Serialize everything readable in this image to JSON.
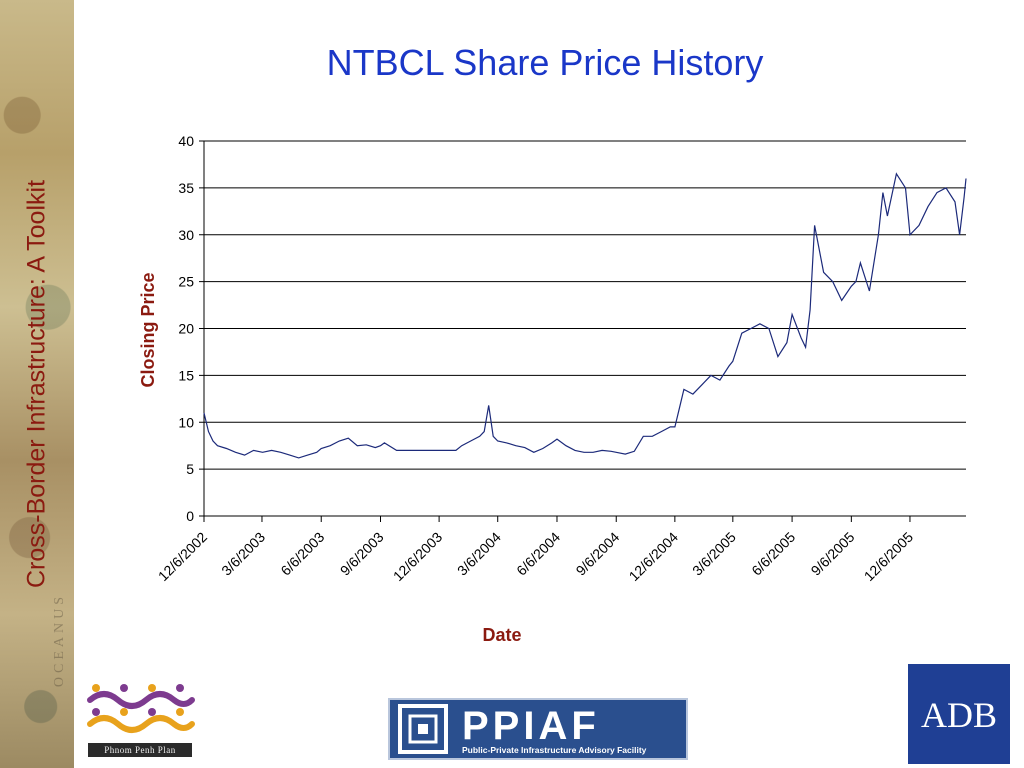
{
  "sidebar": {
    "text": "Cross-Border Infrastructure: A Toolkit",
    "faint_text": "OCEANUS"
  },
  "logos": {
    "ppp": {
      "caption": "Phnom Penh Plan"
    },
    "ppiaf": {
      "word": "PPIAF",
      "tagline": "Public-Private Infrastructure Advisory Facility"
    },
    "adb": {
      "word": "ADB"
    }
  },
  "colors": {
    "title": "#1a37c8",
    "axis_label": "#8b1a10",
    "line": "#1c2a7a",
    "grid": "#000000"
  },
  "chart_data": {
    "type": "line",
    "title": "NTBCL Share Price History",
    "xlabel": "Date",
    "ylabel": "Closing Price",
    "ylim": [
      0,
      40
    ],
    "yticks": [
      0,
      5,
      10,
      15,
      20,
      25,
      30,
      35,
      40
    ],
    "xlim": [
      "2002-12-06",
      "2006-03-03"
    ],
    "xtick_labels": [
      "12/6/2002",
      "3/6/2003",
      "6/6/2003",
      "9/6/2003",
      "12/6/2003",
      "3/6/2004",
      "6/6/2004",
      "9/6/2004",
      "12/6/2004",
      "3/6/2005",
      "6/6/2005",
      "9/6/2005",
      "12/6/2005"
    ],
    "xtick_dates": [
      "2002-12-06",
      "2003-03-06",
      "2003-06-06",
      "2003-09-06",
      "2003-12-06",
      "2004-03-06",
      "2004-06-06",
      "2004-09-06",
      "2004-12-06",
      "2005-03-06",
      "2005-06-06",
      "2005-09-06",
      "2005-12-06"
    ],
    "grid": true,
    "series": [
      {
        "x": [
          "2002-12-06",
          "2002-12-13",
          "2002-12-20",
          "2002-12-27",
          "2003-01-10",
          "2003-01-24",
          "2003-02-07",
          "2003-02-21",
          "2003-03-07",
          "2003-03-21",
          "2003-04-04",
          "2003-04-18",
          "2003-05-02",
          "2003-05-16",
          "2003-05-30",
          "2003-06-06",
          "2003-06-20",
          "2003-07-04",
          "2003-07-18",
          "2003-08-01",
          "2003-08-15",
          "2003-08-29",
          "2003-09-06",
          "2003-09-12",
          "2003-10-01",
          "2003-11-01",
          "2003-12-01",
          "2004-01-01",
          "2004-01-10",
          "2004-01-24",
          "2004-02-07",
          "2004-02-14",
          "2004-02-21",
          "2004-02-28",
          "2004-03-06",
          "2004-03-20",
          "2004-04-03",
          "2004-04-17",
          "2004-05-01",
          "2004-05-15",
          "2004-05-29",
          "2004-06-06",
          "2004-06-20",
          "2004-07-04",
          "2004-07-18",
          "2004-08-01",
          "2004-08-15",
          "2004-08-29",
          "2004-09-06",
          "2004-09-20",
          "2004-10-04",
          "2004-10-18",
          "2004-11-01",
          "2004-11-15",
          "2004-11-29",
          "2004-12-06",
          "2004-12-13",
          "2004-12-20",
          "2005-01-03",
          "2005-01-17",
          "2005-01-31",
          "2005-02-14",
          "2005-02-28",
          "2005-03-06",
          "2005-03-20",
          "2005-04-03",
          "2005-04-17",
          "2005-05-01",
          "2005-05-15",
          "2005-05-29",
          "2005-06-06",
          "2005-06-20",
          "2005-06-27",
          "2005-07-04",
          "2005-07-11",
          "2005-07-25",
          "2005-08-08",
          "2005-08-22",
          "2005-09-06",
          "2005-09-13",
          "2005-09-20",
          "2005-10-04",
          "2005-10-18",
          "2005-10-25",
          "2005-11-01",
          "2005-11-15",
          "2005-11-29",
          "2005-12-06",
          "2005-12-20",
          "2006-01-03",
          "2006-01-17",
          "2006-01-31",
          "2006-02-14",
          "2006-02-21",
          "2006-02-28",
          "2006-03-03"
        ],
        "y": [
          11.0,
          9.0,
          8.0,
          7.5,
          7.2,
          6.8,
          6.5,
          7.0,
          6.8,
          7.0,
          6.8,
          6.5,
          6.2,
          6.5,
          6.8,
          7.2,
          7.5,
          8.0,
          8.3,
          7.5,
          7.6,
          7.3,
          7.5,
          7.8,
          7.0,
          7.0,
          7.0,
          7.0,
          7.5,
          8.0,
          8.5,
          9.0,
          11.8,
          8.5,
          8.0,
          7.8,
          7.5,
          7.3,
          6.8,
          7.2,
          7.8,
          8.2,
          7.5,
          7.0,
          6.8,
          6.8,
          7.0,
          6.9,
          6.8,
          6.6,
          6.9,
          8.5,
          8.5,
          9.0,
          9.5,
          9.5,
          11.5,
          13.5,
          13.0,
          14.0,
          15.0,
          14.5,
          16.0,
          16.5,
          19.5,
          20.0,
          20.5,
          20.0,
          17.0,
          18.5,
          21.5,
          19.0,
          18.0,
          22.0,
          31.0,
          26.0,
          25.0,
          23.0,
          24.5,
          25.0,
          27.0,
          24.0,
          30.0,
          34.5,
          32.0,
          36.5,
          35.0,
          30.0,
          31.0,
          33.0,
          34.5,
          35.0,
          33.5,
          30.0,
          34.0,
          36.0
        ]
      }
    ]
  }
}
